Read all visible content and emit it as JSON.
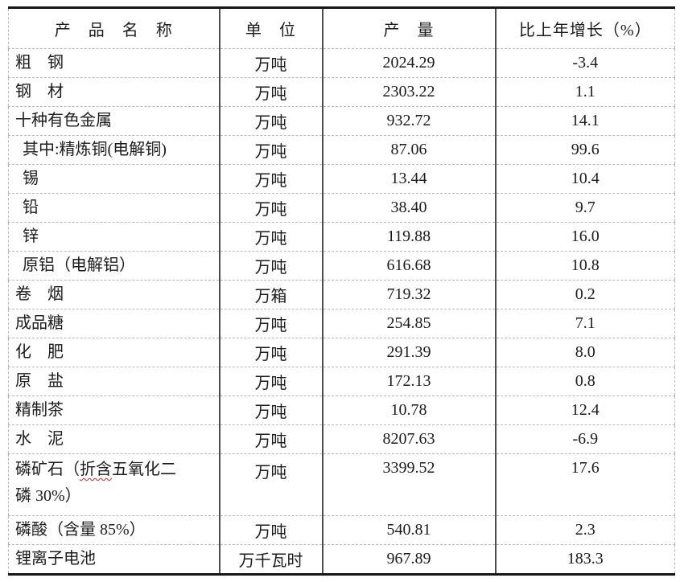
{
  "table": {
    "headers": [
      "产　品　名　称",
      "单　位",
      "产　量",
      "比上年增长（%）"
    ],
    "rows": [
      {
        "name": "粗　钢",
        "unit": "万吨",
        "output": "2024.29",
        "growth": "-3.4"
      },
      {
        "name": "钢　材",
        "unit": "万吨",
        "output": "2303.22",
        "growth": "1.1"
      },
      {
        "name": "十种有色金属",
        "unit": "万吨",
        "output": "932.72",
        "growth": "14.1"
      },
      {
        "name": "其中:精炼铜(电解铜)",
        "unit": "万吨",
        "output": "87.06",
        "growth": "99.6",
        "indent": true
      },
      {
        "name": "锡",
        "unit": "万吨",
        "output": "13.44",
        "growth": "10.4",
        "indent": true
      },
      {
        "name": "铅",
        "unit": "万吨",
        "output": "38.40",
        "growth": "9.7",
        "indent": true
      },
      {
        "name": "锌",
        "unit": "万吨",
        "output": "119.88",
        "growth": "16.0",
        "indent": true
      },
      {
        "name": "原铝（电解铝）",
        "unit": "万吨",
        "output": "616.68",
        "growth": "10.8",
        "indent": true
      },
      {
        "name": "卷　烟",
        "unit": "万箱",
        "output": "719.32",
        "growth": "0.2"
      },
      {
        "name": "成品糖",
        "unit": "万吨",
        "output": "254.85",
        "growth": "7.1"
      },
      {
        "name": "化　肥",
        "unit": "万吨",
        "output": "291.39",
        "growth": "8.0"
      },
      {
        "name": "原　盐",
        "unit": "万吨",
        "output": "172.13",
        "growth": "0.8"
      },
      {
        "name": "精制茶",
        "unit": "万吨",
        "output": "10.78",
        "growth": "12.4"
      },
      {
        "name": "水　泥",
        "unit": "万吨",
        "output": "8207.63",
        "growth": "-6.9"
      },
      {
        "name": "磷矿石（折含五氧化二\n磷 30%）",
        "unit": "万吨",
        "output": "3399.52",
        "growth": "17.6",
        "tall": true,
        "spellcheck_wavy": "折含"
      },
      {
        "name": "磷酸（含量 85%）",
        "unit": "万吨",
        "output": "540.81",
        "growth": "2.3"
      },
      {
        "name": "锂离子电池",
        "unit": "万千瓦时",
        "output": "967.89",
        "growth": "183.3"
      }
    ]
  },
  "colors": {
    "text": "#1c1c1c",
    "outer_border": "#151515",
    "column_divider": "#4d4d4d",
    "row_divider": "#b8b8b8",
    "spellcheck_underline": "#cc2222",
    "background": "#ffffff"
  }
}
